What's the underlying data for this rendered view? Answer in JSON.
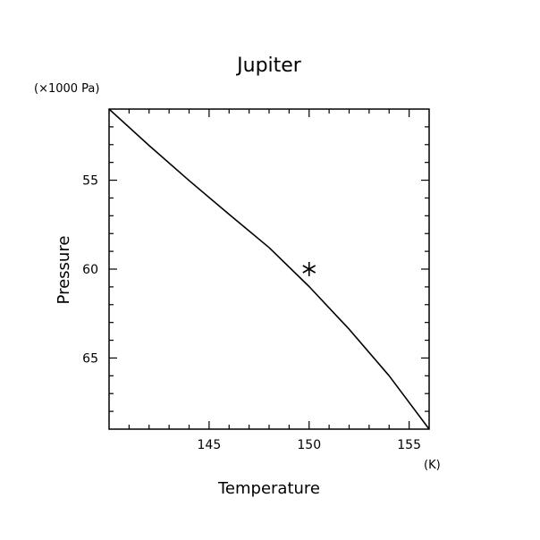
{
  "chart_data": {
    "type": "line",
    "title": "Jupiter",
    "xlabel": "Temperature",
    "ylabel": "Pressure",
    "x_unit": "(K)",
    "y_unit": "(×1000 Pa)",
    "xlim": [
      140,
      156
    ],
    "ylim": [
      51,
      69
    ],
    "y_inverted": true,
    "x_major_ticks": [
      145,
      150,
      155
    ],
    "x_minor_step": 1,
    "y_major_ticks": [
      55,
      60,
      65
    ],
    "y_minor_step": 1,
    "grid": false,
    "series": [
      {
        "x": [
          140,
          142,
          144,
          146,
          148,
          150,
          152,
          154,
          156
        ],
        "y": [
          51.0,
          53.05,
          55.02,
          56.92,
          58.79,
          60.98,
          63.38,
          66.0,
          69.0
        ]
      }
    ],
    "marker_points": [
      {
        "x": 150,
        "y": 60,
        "symbol": "asterisk"
      }
    ],
    "colors": {
      "line": "#000000",
      "axes": "#000000",
      "background": "#ffffff"
    }
  }
}
